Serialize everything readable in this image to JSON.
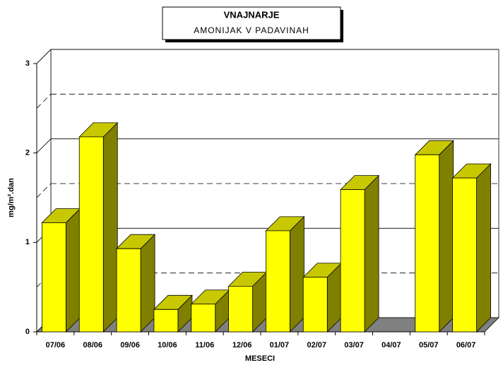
{
  "chart_data": {
    "type": "bar3d",
    "title": "VNAJNARJE",
    "subtitle": "AMONIJAK V PADAVINAH",
    "x_label": "MESECI",
    "y_label": "mg/m².dan",
    "categories": [
      "07/06",
      "08/06",
      "09/06",
      "10/06",
      "11/06",
      "12/06",
      "01/07",
      "02/07",
      "03/07",
      "04/07",
      "05/07",
      "06/07"
    ],
    "values": [
      1.22,
      2.18,
      0.93,
      0.25,
      0.31,
      0.51,
      1.13,
      0.61,
      1.59,
      null,
      1.98,
      1.72
    ],
    "color": "#ffff00",
    "ylim": [
      0,
      3
    ],
    "yticks": [
      0,
      1,
      2,
      3
    ],
    "minor_yticks": [
      0.5,
      1.5,
      2.5
    ],
    "grid": true
  }
}
